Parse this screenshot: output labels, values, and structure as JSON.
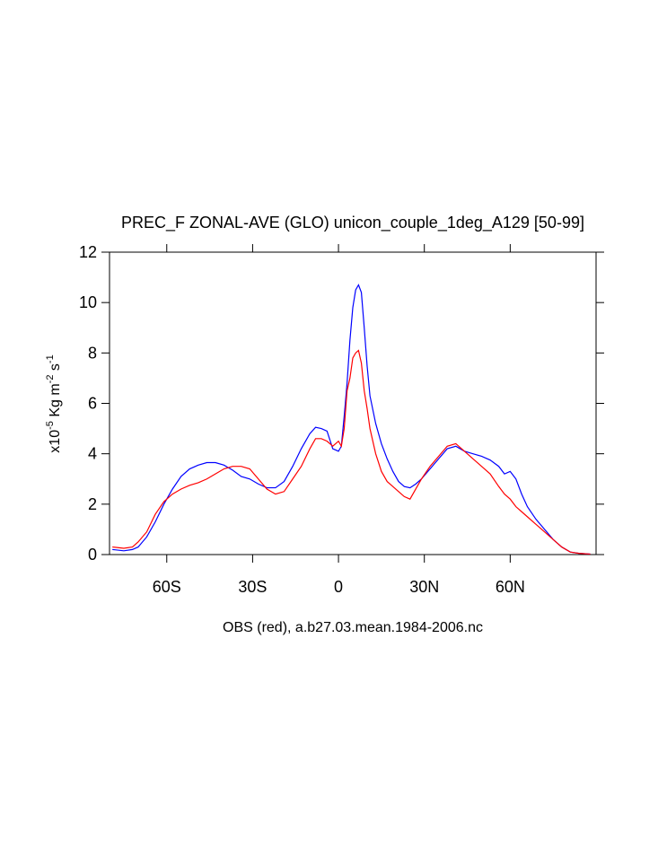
{
  "chart_data": {
    "type": "line",
    "title": "PREC_F ZONAL-AVE (GLO) unicon_couple_1deg_A129 [50-99]",
    "xlabel": "OBS (red), a.b27.03.mean.1984-2006.nc",
    "ylabel": [
      "x10",
      "-5",
      " Kg m",
      "-2",
      " s",
      "-1"
    ],
    "xlim": [
      -80,
      90
    ],
    "ylim": [
      0,
      12
    ],
    "xticks": [
      {
        "value": -60,
        "label": "60S"
      },
      {
        "value": -30,
        "label": "30S"
      },
      0,
      {
        "value": 30,
        "label": "30N"
      },
      {
        "value": 60,
        "label": "60N"
      }
    ],
    "yticks": [
      0,
      2,
      4,
      6,
      8,
      10,
      12
    ],
    "x": [
      -79,
      -75,
      -72,
      -70,
      -67,
      -64,
      -61,
      -58,
      -55,
      -52,
      -49,
      -46,
      -43,
      -40,
      -37,
      -34,
      -31,
      -28,
      -25,
      -22,
      -19,
      -16,
      -13,
      -10,
      -8,
      -6,
      -4,
      -2,
      0,
      1,
      2,
      3,
      4,
      5,
      6,
      7,
      8,
      9,
      10,
      11,
      13,
      15,
      17,
      19,
      21,
      23,
      25,
      27,
      29,
      32,
      35,
      38,
      41,
      44,
      47,
      50,
      53,
      56,
      58,
      60,
      62,
      64,
      66,
      69,
      72,
      75,
      78,
      81,
      84,
      88
    ],
    "series": [
      {
        "color": "#0000ff",
        "values": [
          0.2,
          0.15,
          0.2,
          0.3,
          0.7,
          1.3,
          2.0,
          2.6,
          3.1,
          3.4,
          3.55,
          3.65,
          3.65,
          3.55,
          3.35,
          3.1,
          3.0,
          2.8,
          2.65,
          2.65,
          2.9,
          3.5,
          4.2,
          4.8,
          5.05,
          5.0,
          4.9,
          4.2,
          4.1,
          4.3,
          5.5,
          6.8,
          8.5,
          9.8,
          10.5,
          10.7,
          10.4,
          9.0,
          7.5,
          6.3,
          5.2,
          4.4,
          3.8,
          3.3,
          2.9,
          2.7,
          2.65,
          2.8,
          3.0,
          3.4,
          3.8,
          4.2,
          4.3,
          4.1,
          4.0,
          3.9,
          3.75,
          3.5,
          3.2,
          3.3,
          3.0,
          2.4,
          1.9,
          1.4,
          1.0,
          0.6,
          0.3,
          0.1,
          0.05,
          0.02
        ]
      },
      {
        "color": "#ff0000",
        "values": [
          0.3,
          0.25,
          0.3,
          0.5,
          0.9,
          1.6,
          2.1,
          2.4,
          2.6,
          2.75,
          2.85,
          3.0,
          3.2,
          3.4,
          3.5,
          3.5,
          3.4,
          3.0,
          2.6,
          2.4,
          2.5,
          3.0,
          3.5,
          4.2,
          4.6,
          4.6,
          4.5,
          4.3,
          4.5,
          4.3,
          5.0,
          6.5,
          7.0,
          7.8,
          8.0,
          8.1,
          7.6,
          6.5,
          5.8,
          5.0,
          4.0,
          3.3,
          2.9,
          2.7,
          2.5,
          2.3,
          2.2,
          2.6,
          3.0,
          3.5,
          3.9,
          4.3,
          4.4,
          4.1,
          3.8,
          3.5,
          3.2,
          2.7,
          2.4,
          2.2,
          1.9,
          1.7,
          1.5,
          1.2,
          0.9,
          0.6,
          0.3,
          0.1,
          0.05,
          0.02
        ]
      }
    ]
  }
}
